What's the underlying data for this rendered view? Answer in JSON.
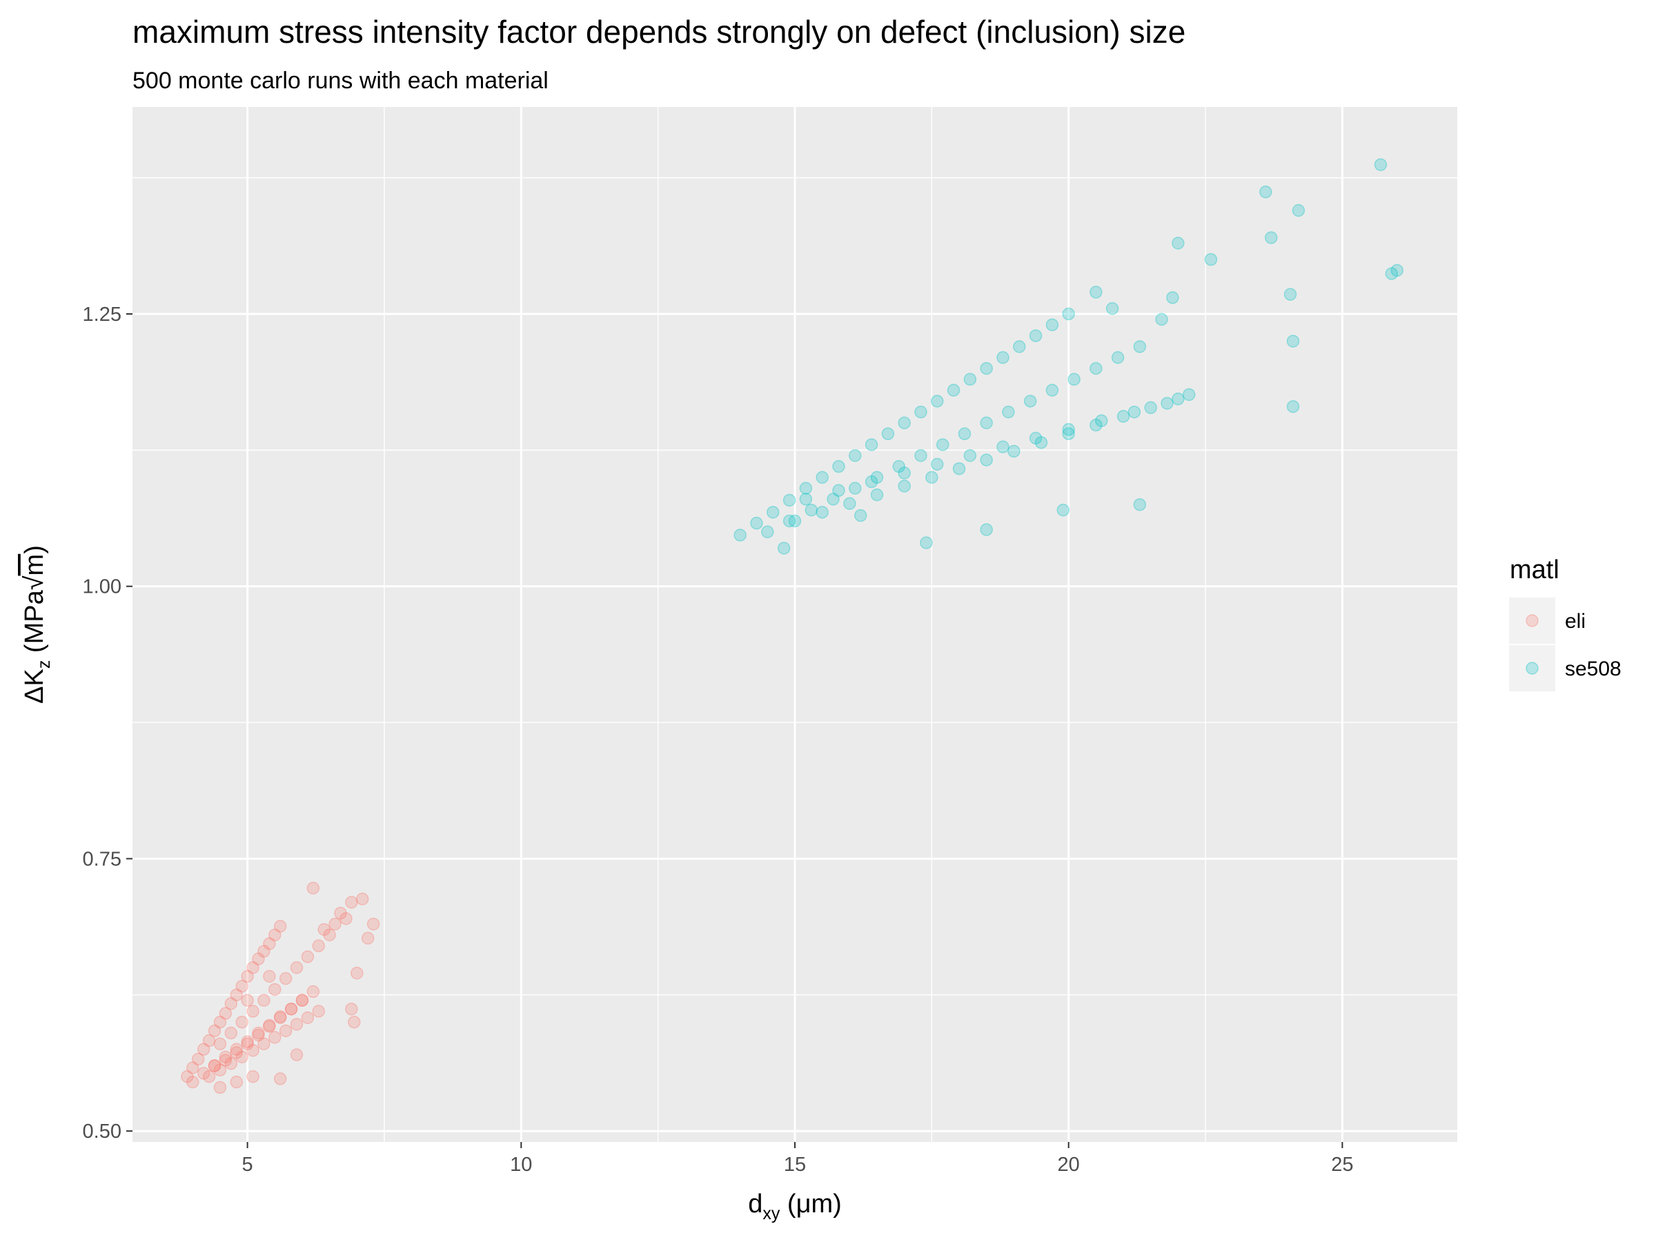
{
  "chart_data": {
    "type": "scatter",
    "title": "maximum stress intensity factor depends strongly on defect (inclusion) size",
    "subtitle": "500 monte carlo runs with each material",
    "xlabel": {
      "main": "d",
      "sub": "xy",
      "unit": " (μm)"
    },
    "ylabel": {
      "main": "ΔK",
      "sub": "z",
      "unit_pre": " (MPa",
      "sqrt": "m",
      "unit_post": ")"
    },
    "xlim": [
      2.9,
      27.1
    ],
    "ylim": [
      0.49,
      1.44
    ],
    "x_ticks": [
      5,
      10,
      15,
      20,
      25
    ],
    "x_tick_labels": [
      "5",
      "10",
      "15",
      "20",
      "25"
    ],
    "y_ticks": [
      0.5,
      0.75,
      1.0,
      1.25
    ],
    "y_tick_labels": [
      "0.50",
      "0.75",
      "1.00",
      "1.25"
    ],
    "grid": true,
    "legend": {
      "title": "matl",
      "position": "right",
      "entries": [
        {
          "name": "eli",
          "color": "#F8766D"
        },
        {
          "name": "se508",
          "color": "#00BFC4"
        }
      ]
    },
    "point_alpha": 0.25,
    "series": [
      {
        "name": "eli",
        "color": "#F8766D",
        "x": [
          3.9,
          4.0,
          4.1,
          4.2,
          4.3,
          4.4,
          4.5,
          4.6,
          4.7,
          4.8,
          4.9,
          5.0,
          5.1,
          5.2,
          5.3,
          5.4,
          5.5,
          5.6,
          4.0,
          4.2,
          4.4,
          4.6,
          4.8,
          5.0,
          5.2,
          5.4,
          5.6,
          5.8,
          6.0,
          4.3,
          4.5,
          4.7,
          4.9,
          5.1,
          5.3,
          5.5,
          5.7,
          5.9,
          6.1,
          6.3,
          4.4,
          4.6,
          4.8,
          5.0,
          5.2,
          5.4,
          5.6,
          5.8,
          6.0,
          6.2,
          4.5,
          4.7,
          4.9,
          5.1,
          5.3,
          5.5,
          5.7,
          5.9,
          6.1,
          6.3,
          6.5,
          6.6,
          6.9,
          7.1,
          7.3,
          7.2,
          6.8,
          7.0,
          6.4,
          6.7,
          6.2,
          5.9,
          5.6,
          4.5,
          4.8,
          5.1,
          6.9,
          6.95,
          5.4,
          5.0
        ],
        "y": [
          0.55,
          0.558,
          0.566,
          0.575,
          0.583,
          0.592,
          0.6,
          0.608,
          0.617,
          0.625,
          0.633,
          0.642,
          0.65,
          0.658,
          0.665,
          0.672,
          0.68,
          0.688,
          0.545,
          0.553,
          0.56,
          0.568,
          0.575,
          0.582,
          0.59,
          0.597,
          0.605,
          0.612,
          0.62,
          0.55,
          0.556,
          0.562,
          0.568,
          0.574,
          0.58,
          0.586,
          0.592,
          0.598,
          0.604,
          0.61,
          0.56,
          0.565,
          0.572,
          0.58,
          0.588,
          0.596,
          0.604,
          0.612,
          0.62,
          0.628,
          0.58,
          0.59,
          0.6,
          0.61,
          0.62,
          0.63,
          0.64,
          0.65,
          0.66,
          0.67,
          0.68,
          0.69,
          0.71,
          0.713,
          0.69,
          0.677,
          0.695,
          0.645,
          0.685,
          0.7,
          0.723,
          0.57,
          0.548,
          0.54,
          0.545,
          0.55,
          0.612,
          0.6,
          0.642,
          0.62
        ]
      },
      {
        "name": "se508",
        "color": "#00BFC4",
        "x": [
          14.0,
          14.3,
          14.6,
          14.9,
          15.2,
          15.5,
          15.8,
          16.1,
          16.4,
          16.7,
          17.0,
          17.3,
          17.6,
          17.9,
          18.2,
          18.5,
          18.8,
          19.1,
          19.4,
          19.7,
          20.0,
          14.5,
          14.9,
          15.3,
          15.7,
          16.1,
          16.5,
          16.9,
          17.3,
          17.7,
          18.1,
          18.5,
          18.9,
          19.3,
          19.7,
          20.1,
          20.5,
          20.9,
          21.3,
          15.0,
          15.5,
          16.0,
          16.5,
          17.0,
          17.5,
          18.0,
          18.5,
          19.0,
          19.5,
          20.0,
          20.5,
          21.0,
          21.5,
          22.0,
          15.2,
          15.8,
          16.4,
          17.0,
          17.6,
          18.2,
          18.8,
          19.4,
          20.0,
          20.6,
          21.2,
          21.8,
          22.2,
          14.8,
          16.2,
          17.4,
          18.5,
          19.9,
          21.3,
          22.6,
          23.6,
          23.7,
          24.2,
          24.1,
          24.05,
          24.1,
          25.7,
          25.9,
          26.0,
          22.0,
          21.9,
          21.7,
          20.8,
          20.5
        ],
        "y": [
          1.047,
          1.058,
          1.068,
          1.079,
          1.09,
          1.1,
          1.11,
          1.12,
          1.13,
          1.14,
          1.15,
          1.16,
          1.17,
          1.18,
          1.19,
          1.2,
          1.21,
          1.22,
          1.23,
          1.24,
          1.25,
          1.05,
          1.06,
          1.07,
          1.08,
          1.09,
          1.1,
          1.11,
          1.12,
          1.13,
          1.14,
          1.15,
          1.16,
          1.17,
          1.18,
          1.19,
          1.2,
          1.21,
          1.22,
          1.06,
          1.068,
          1.076,
          1.084,
          1.092,
          1.1,
          1.108,
          1.116,
          1.124,
          1.132,
          1.14,
          1.148,
          1.156,
          1.164,
          1.172,
          1.08,
          1.088,
          1.096,
          1.104,
          1.112,
          1.12,
          1.128,
          1.136,
          1.144,
          1.152,
          1.16,
          1.168,
          1.176,
          1.035,
          1.065,
          1.04,
          1.052,
          1.07,
          1.075,
          1.3,
          1.362,
          1.32,
          1.345,
          1.225,
          1.268,
          1.165,
          1.387,
          1.287,
          1.29,
          1.315,
          1.265,
          1.245,
          1.255,
          1.27
        ]
      }
    ]
  }
}
